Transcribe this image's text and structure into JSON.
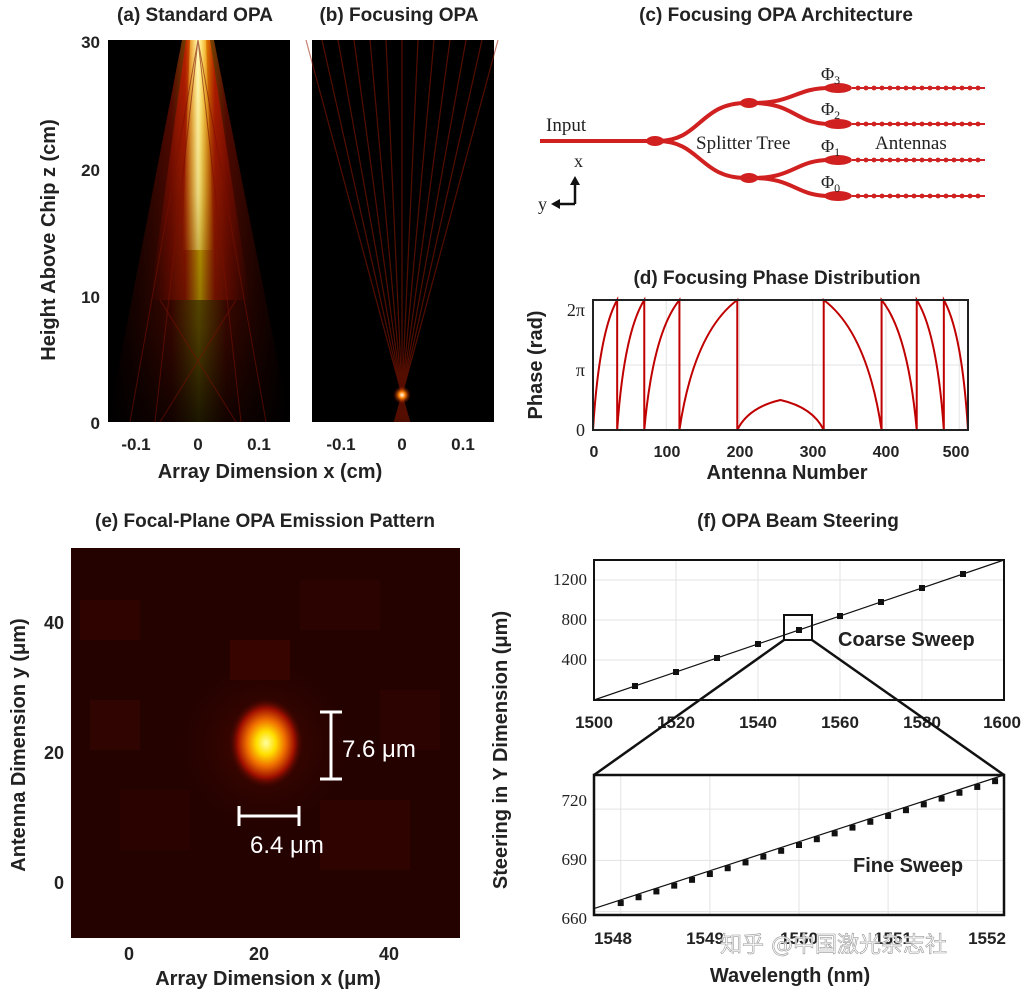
{
  "panels": {
    "a": {
      "title": "(a) Standard OPA"
    },
    "b": {
      "title": "(b) Focusing OPA"
    },
    "ab": {
      "ylabel": "Height Above Chip z (cm)",
      "xlabel": "Array Dimension x (cm)",
      "yticks": [
        "30",
        "20",
        "10",
        "0"
      ],
      "xticks": [
        "-0.1",
        "0",
        "0.1"
      ]
    },
    "c": {
      "title": "(c) Focusing OPA Architecture",
      "input": "Input",
      "splitter": "Splitter Tree",
      "antennas": "Antennas",
      "phi": [
        "Φ",
        "Φ",
        "Φ",
        "Φ"
      ],
      "phi_sub": [
        "3",
        "2",
        "1",
        "0"
      ],
      "axis_x": "x",
      "axis_y": "y"
    },
    "d": {
      "title": "(d) Focusing Phase Distribution",
      "ylabel": "Phase (rad)",
      "xlabel": "Antenna Number",
      "yticks": [
        "2π",
        "π",
        "0"
      ],
      "xticks": [
        "0",
        "100",
        "200",
        "300",
        "400",
        "500"
      ]
    },
    "e": {
      "title": "(e) Focal-Plane OPA Emission Pattern",
      "ylabel": "Antenna Dimension y (μm)",
      "xlabel": "Array Dimension x (μm)",
      "yticks": [
        "40",
        "20",
        "0"
      ],
      "xticks": [
        "0",
        "20",
        "40"
      ],
      "fwhm_y": "7.6 μm",
      "fwhm_x": "6.4 μm"
    },
    "f": {
      "title": "(f) OPA Beam Steering",
      "ylabel": "Steering in Y Dimension (μm)",
      "xlabel": "Wavelength (nm)",
      "coarse_label": "Coarse Sweep",
      "fine_label": "Fine Sweep",
      "coarse_yticks": [
        "1200",
        "800",
        "400"
      ],
      "coarse_xticks": [
        "1500",
        "1520",
        "1540",
        "1560",
        "1580",
        "1600"
      ],
      "fine_yticks": [
        "720",
        "690",
        "660"
      ],
      "fine_xticks": [
        "1548",
        "1549",
        "1550",
        "1551",
        "1552"
      ]
    }
  },
  "watermark": "知乎 @中国激光杂志社",
  "chart_data": [
    {
      "type": "heatmap",
      "title": "(a) Standard OPA",
      "xlabel": "Array Dimension x (cm)",
      "ylabel": "Height Above Chip z (cm)",
      "xlim": [
        -0.15,
        0.15
      ],
      "ylim": [
        0,
        30
      ],
      "colormap": "hot",
      "description_values": {
        "beam_center_x": 0,
        "peak_z_range": [
          24,
          30
        ]
      }
    },
    {
      "type": "heatmap",
      "title": "(b) Focusing OPA",
      "xlabel": "Array Dimension x (cm)",
      "ylabel": "Height Above Chip z (cm)",
      "xlim": [
        -0.15,
        0.15
      ],
      "ylim": [
        0,
        30
      ],
      "colormap": "hot",
      "description_values": {
        "focus_x": 0,
        "focus_z": 2
      }
    },
    {
      "type": "line",
      "title": "(d) Focusing Phase Distribution",
      "xlabel": "Antenna Number",
      "ylabel": "Phase (rad)",
      "xlim": [
        0,
        512
      ],
      "ylim": [
        0,
        6.2832
      ],
      "series": [
        {
          "color": "#c00000",
          "x": [
            0,
            33,
            33,
            70,
            70,
            118,
            118,
            197,
            197,
            256,
            315,
            315,
            394,
            394,
            442,
            442,
            479,
            479,
            512
          ],
          "y": [
            0,
            6.2832,
            0,
            6.2832,
            0,
            6.2832,
            0,
            6.2832,
            0,
            1.45,
            0,
            6.2832,
            0,
            6.2832,
            0,
            6.2832,
            0,
            6.2832,
            0
          ]
        }
      ]
    },
    {
      "type": "heatmap",
      "title": "(e) Focal-Plane OPA Emission Pattern",
      "xlabel": "Array Dimension x (μm)",
      "ylabel": "Antenna Dimension y (μm)",
      "xlim": [
        -9,
        51
      ],
      "ylim": [
        -9,
        51
      ],
      "colormap": "hot",
      "peak": {
        "x": 21,
        "y": 21
      },
      "fwhm_x_um": 6.4,
      "fwhm_y_um": 7.6
    },
    {
      "type": "scatter",
      "title": "(f) OPA Beam Steering — Coarse Sweep",
      "xlabel": "Wavelength (nm)",
      "ylabel": "Steering in Y Dimension (μm)",
      "xlim": [
        1500,
        1600
      ],
      "ylim": [
        0,
        1400
      ],
      "fit_line": {
        "x": [
          1500,
          1600
        ],
        "y": [
          0,
          1400
        ]
      },
      "series": [
        {
          "x": [
            1510,
            1520,
            1530,
            1540,
            1550,
            1560,
            1570,
            1580,
            1590
          ],
          "y": [
            140,
            280,
            420,
            560,
            700,
            840,
            980,
            1120,
            1260
          ]
        }
      ]
    },
    {
      "type": "scatter",
      "title": "(f) OPA Beam Steering — Fine Sweep",
      "xlabel": "Wavelength (nm)",
      "ylabel": "Steering in Y Dimension (μm)",
      "xlim": [
        1547.7,
        1552.3
      ],
      "ylim": [
        658,
        740
      ],
      "fit_line": {
        "x": [
          1547.7,
          1552.3
        ],
        "y": [
          661.8,
          740.0
        ]
      },
      "series": [
        {
          "x": [
            1548.0,
            1548.2,
            1548.4,
            1548.6,
            1548.8,
            1549.0,
            1549.2,
            1549.4,
            1549.6,
            1549.8,
            1550.0,
            1550.2,
            1550.4,
            1550.6,
            1550.8,
            1551.0,
            1551.2,
            1551.4,
            1551.6,
            1551.8,
            1552.0,
            1552.2
          ],
          "y": [
            665.0,
            668.4,
            671.8,
            675.2,
            678.6,
            682.0,
            685.4,
            688.8,
            692.2,
            695.6,
            699.0,
            702.4,
            705.8,
            709.2,
            712.6,
            716.0,
            719.4,
            722.8,
            726.2,
            729.6,
            733.0,
            736.4
          ]
        }
      ]
    }
  ]
}
